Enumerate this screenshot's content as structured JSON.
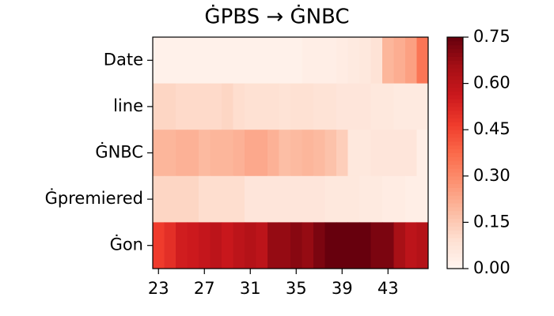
{
  "chart_data": {
    "type": "heatmap",
    "title": "ĠPBS → ĠNBC",
    "x": [
      23,
      24,
      25,
      26,
      27,
      28,
      29,
      30,
      31,
      32,
      33,
      34,
      35,
      36,
      37,
      38,
      39,
      40,
      41,
      42,
      43,
      44,
      45,
      46
    ],
    "xticks": [
      23,
      27,
      31,
      35,
      39,
      43
    ],
    "rows": [
      "Date",
      "line",
      "ĠNBC",
      "Ġpremiered",
      "Ġon"
    ],
    "z": [
      [
        0.02,
        0.02,
        0.02,
        0.02,
        0.02,
        0.02,
        0.02,
        0.02,
        0.02,
        0.02,
        0.02,
        0.02,
        0.02,
        0.03,
        0.03,
        0.03,
        0.04,
        0.05,
        0.06,
        0.08,
        0.2,
        0.22,
        0.25,
        0.35
      ],
      [
        0.12,
        0.12,
        0.11,
        0.11,
        0.11,
        0.11,
        0.12,
        0.1,
        0.09,
        0.09,
        0.09,
        0.08,
        0.09,
        0.09,
        0.08,
        0.08,
        0.07,
        0.07,
        0.07,
        0.06,
        0.06,
        0.05,
        0.05,
        0.05
      ],
      [
        0.2,
        0.2,
        0.21,
        0.21,
        0.19,
        0.2,
        0.2,
        0.21,
        0.23,
        0.23,
        0.21,
        0.18,
        0.19,
        0.2,
        0.19,
        0.17,
        0.14,
        0.06,
        0.06,
        0.07,
        0.07,
        0.07,
        0.07,
        0.03
      ],
      [
        0.12,
        0.12,
        0.12,
        0.12,
        0.1,
        0.1,
        0.1,
        0.1,
        0.07,
        0.07,
        0.07,
        0.07,
        0.07,
        0.07,
        0.07,
        0.06,
        0.06,
        0.06,
        0.05,
        0.05,
        0.04,
        0.04,
        0.03,
        0.03
      ],
      [
        0.47,
        0.5,
        0.55,
        0.56,
        0.58,
        0.6,
        0.57,
        0.6,
        0.62,
        0.6,
        0.68,
        0.68,
        0.7,
        0.68,
        0.72,
        0.78,
        0.8,
        0.8,
        0.78,
        0.72,
        0.72,
        0.65,
        0.6,
        0.62
      ]
    ],
    "colormap": "Reds",
    "zlim": [
      0,
      0.75
    ],
    "zticks": [
      {
        "value": 0,
        "label": "0.00"
      },
      {
        "value": 0.15,
        "label": "0.15"
      },
      {
        "value": 0.3,
        "label": "0.30"
      },
      {
        "value": 0.45,
        "label": "0.45"
      },
      {
        "value": 0.6,
        "label": "0.60"
      },
      {
        "value": 0.75,
        "label": "0.75"
      }
    ]
  }
}
